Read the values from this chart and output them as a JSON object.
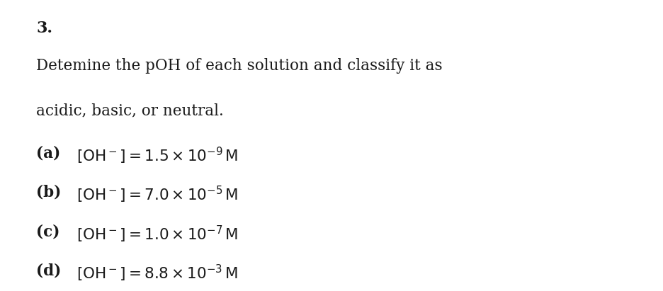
{
  "background_color": "#ffffff",
  "fig_width": 9.36,
  "fig_height": 4.11,
  "dpi": 100,
  "number": "3.",
  "number_fontsize": 16,
  "number_fontweight": "bold",
  "title_line1": "Detemine the pOH of each solution and classify it as",
  "title_line2": "acidic, basic, or neutral.",
  "title_fontsize": 15.5,
  "lines": [
    {
      "label": "(a)",
      "expr": "$[\\mathrm{OH}^-] = 1.5 \\times 10^{-9}\\,\\mathrm{M}$"
    },
    {
      "label": "(b)",
      "expr": "$[\\mathrm{OH}^-] = 7.0 \\times 10^{-5}\\,\\mathrm{M}$"
    },
    {
      "label": "(c)",
      "expr": "$[\\mathrm{OH}^-] = 1.0 \\times 10^{-7}\\,\\mathrm{M}$"
    },
    {
      "label": "(d)",
      "expr": "$[\\mathrm{OH}^-] = 8.8 \\times 10^{-3}\\,\\mathrm{M}$"
    }
  ],
  "line_fontsize": 15.5,
  "text_color": "#1a1a1a",
  "label_indent": 0.055,
  "content_indent": 0.115
}
